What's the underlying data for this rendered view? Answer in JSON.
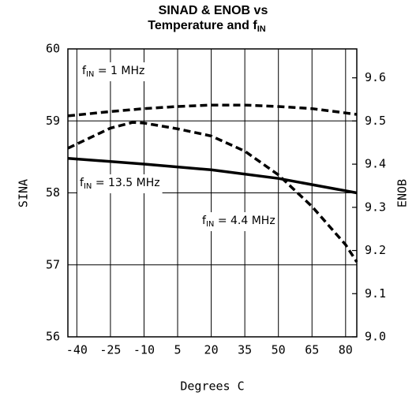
{
  "chart_data": {
    "type": "line",
    "title": {
      "line1": "SINAD & ENOB vs",
      "line2": "Temperature and f",
      "line2_sub": "IN"
    },
    "ylabel": "SINA",
    "y2label": "ENOB",
    "xlabel": "Degrees C",
    "xlim": [
      -44,
      85
    ],
    "xticks": [
      -40,
      -25,
      -10,
      5,
      20,
      35,
      50,
      65,
      80
    ],
    "ylim": [
      56,
      60
    ],
    "yticks": [
      56,
      57,
      58,
      59,
      60
    ],
    "y2lim": [
      9.0,
      9.667
    ],
    "y2ticks": [
      {
        "value": 9.0,
        "label": "9.0"
      },
      9.1,
      9.2,
      9.3,
      9.4,
      9.5,
      9.6
    ],
    "grid": true,
    "series": [
      {
        "color": "#000000",
        "dash": true,
        "x": [
          -44,
          -25,
          -10,
          5,
          20,
          35,
          50,
          65,
          85
        ],
        "values": [
          59.07,
          59.13,
          59.17,
          59.2,
          59.22,
          59.22,
          59.2,
          59.17,
          59.09
        ]
      },
      {
        "color": "#000000",
        "dash": true,
        "x": [
          -44,
          -25,
          -15,
          -10,
          5,
          20,
          35,
          50,
          65,
          80,
          85
        ],
        "values": [
          58.62,
          58.9,
          58.98,
          58.97,
          58.89,
          58.79,
          58.58,
          58.25,
          57.81,
          57.28,
          57.04
        ]
      },
      {
        "color": "#000000",
        "dash": false,
        "x": [
          -44,
          -10,
          20,
          50,
          85
        ],
        "values": [
          58.48,
          58.4,
          58.32,
          58.2,
          58.0
        ]
      }
    ],
    "annotations": [
      {
        "text": "f",
        "sub": "IN",
        "rest": " = 1 MHz"
      },
      {
        "text": "f",
        "sub": "IN",
        "rest": " = 13.5 MHz"
      },
      {
        "text": "f",
        "sub": "IN",
        "rest": " = 4.4 MHz"
      }
    ]
  }
}
